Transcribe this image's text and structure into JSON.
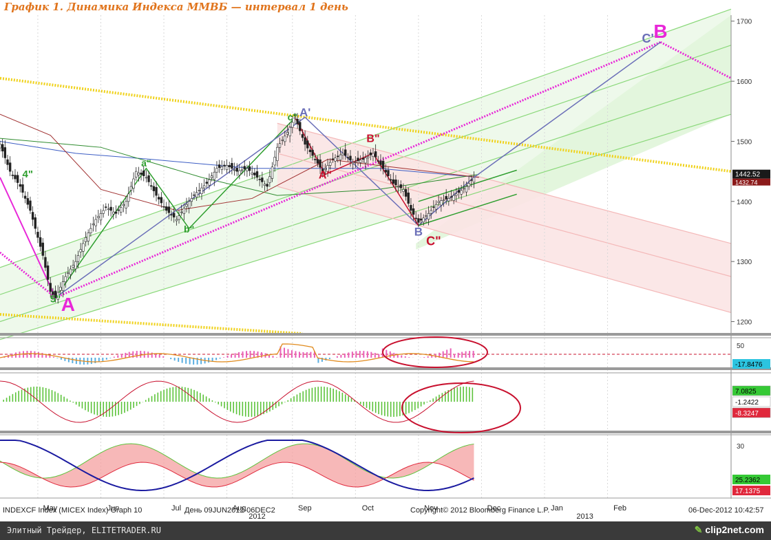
{
  "title": "График 1.   Динамика Индекса ММВБ — интервал 1 день",
  "footer": {
    "left": "INDEXCF Index (MICEX Index) Graph 10",
    "range": "День 09JUN2012-06DEC2",
    "copyright": "Copyright© 2012 Bloomberg Finance L.P.",
    "timestamp": "06-Dec-2012 10:42:57"
  },
  "watermark": {
    "left": "Элитный Трейдер, ELITETRADER.RU",
    "right_icon": "leaf-icon",
    "right": "clip2net.com"
  },
  "chart_data": {
    "type": "line",
    "ylim": [
      1180,
      1710
    ],
    "yticks": [
      "1700",
      "1600",
      "1500",
      "1400",
      "1300",
      "1200"
    ],
    "xlim": [
      0,
      290
    ],
    "months": [
      {
        "label": "May",
        "x": 15
      },
      {
        "label": "Jun",
        "x": 40
      },
      {
        "label": "Jul",
        "x": 65
      },
      {
        "label": "Aug",
        "x": 90
      },
      {
        "label": "Sep",
        "x": 116
      },
      {
        "label": "Oct",
        "x": 141
      },
      {
        "label": "Nov",
        "x": 166
      },
      {
        "label": "Dec",
        "x": 191
      },
      {
        "label": "Jan",
        "x": 216
      },
      {
        "label": "Feb",
        "x": 241
      }
    ],
    "years": [
      {
        "label": "2012",
        "x": 102
      },
      {
        "label": "2013",
        "x": 232
      }
    ],
    "price_path": [
      [
        0,
        1495
      ],
      [
        4,
        1450
      ],
      [
        8,
        1425
      ],
      [
        12,
        1385
      ],
      [
        17,
        1310
      ],
      [
        20,
        1250
      ],
      [
        22,
        1240
      ],
      [
        26,
        1275
      ],
      [
        30,
        1300
      ],
      [
        34,
        1340
      ],
      [
        38,
        1370
      ],
      [
        42,
        1390
      ],
      [
        46,
        1380
      ],
      [
        50,
        1400
      ],
      [
        54,
        1450
      ],
      [
        58,
        1440
      ],
      [
        62,
        1410
      ],
      [
        66,
        1385
      ],
      [
        70,
        1370
      ],
      [
        74,
        1395
      ],
      [
        78,
        1415
      ],
      [
        82,
        1430
      ],
      [
        86,
        1455
      ],
      [
        90,
        1460
      ],
      [
        94,
        1450
      ],
      [
        98,
        1455
      ],
      [
        102,
        1440
      ],
      [
        106,
        1425
      ],
      [
        110,
        1490
      ],
      [
        114,
        1515
      ],
      [
        117,
        1540
      ],
      [
        121,
        1495
      ],
      [
        125,
        1470
      ],
      [
        128,
        1450
      ],
      [
        132,
        1470
      ],
      [
        136,
        1480
      ],
      [
        140,
        1465
      ],
      [
        144,
        1470
      ],
      [
        148,
        1480
      ],
      [
        152,
        1455
      ],
      [
        156,
        1430
      ],
      [
        160,
        1420
      ],
      [
        163,
        1385
      ],
      [
        166,
        1365
      ],
      [
        170,
        1380
      ],
      [
        174,
        1400
      ],
      [
        178,
        1405
      ],
      [
        182,
        1415
      ],
      [
        185,
        1425
      ],
      [
        188,
        1440
      ]
    ],
    "last_price": "1442.52",
    "price_label_2": "1432.74",
    "projection": [
      [
        188,
        1440
      ],
      [
        262,
        1665
      ]
    ],
    "wave_labels": [
      {
        "t": "A",
        "x": 27,
        "y": 1218,
        "color": "#e828d8",
        "size": 28
      },
      {
        "t": "B",
        "x": 262,
        "y": 1672,
        "color": "#e828d8",
        "size": 28
      },
      {
        "t": "C'",
        "x": 257,
        "y": 1664,
        "color": "#6b6fb8",
        "size": 18
      },
      {
        "t": "A'",
        "x": 121,
        "y": 1542,
        "color": "#6b6fb8",
        "size": 17
      },
      {
        "t": "A\"",
        "x": 129,
        "y": 1438,
        "color": "#c8102e",
        "size": 16
      },
      {
        "t": "B\"",
        "x": 148,
        "y": 1499,
        "color": "#c8102e",
        "size": 16
      },
      {
        "t": "B",
        "x": 166,
        "y": 1343,
        "color": "#6b6fb8",
        "size": 17
      },
      {
        "t": "C\"",
        "x": 172,
        "y": 1327,
        "color": "#c8102e",
        "size": 18
      },
      {
        "t": "4\"",
        "x": 11,
        "y": 1440,
        "color": "#2e9e2e",
        "size": 15
      },
      {
        "t": "5\"",
        "x": 22,
        "y": 1232,
        "color": "#2e9e2e",
        "size": 15
      },
      {
        "t": "a\"",
        "x": 58,
        "y": 1458,
        "color": "#2e9e2e",
        "size": 14
      },
      {
        "t": "b\"",
        "x": 75,
        "y": 1348,
        "color": "#2e9e2e",
        "size": 14
      },
      {
        "t": "c\"",
        "x": 116,
        "y": 1535,
        "color": "#2e9e2e",
        "size": 14
      }
    ],
    "indicator1": {
      "tick": "50",
      "value_a": "-17.8476"
    },
    "indicator2": {
      "value_a": "7.0825",
      "value_b": "-1.2422",
      "value_c": "-8.3247"
    },
    "indicator3": {
      "tick": "30",
      "value_a": "25.2362",
      "value_b": "17.1375"
    },
    "colors": {
      "title": "#e0741c",
      "price_up": "#222222",
      "magenta": "#e828d8",
      "projection": "#6b6fb8",
      "channel": "#8ad87a",
      "yellow": "#f0d21c",
      "red_channel": "#f4b8b8",
      "histo_green": "#5cc33a",
      "histo_red": "#e95f7d",
      "oval": "#c8102e",
      "value_box_green": "#35c935",
      "value_box_red": "#e0283c",
      "value_box_cyan": "#2cc4e0"
    }
  }
}
